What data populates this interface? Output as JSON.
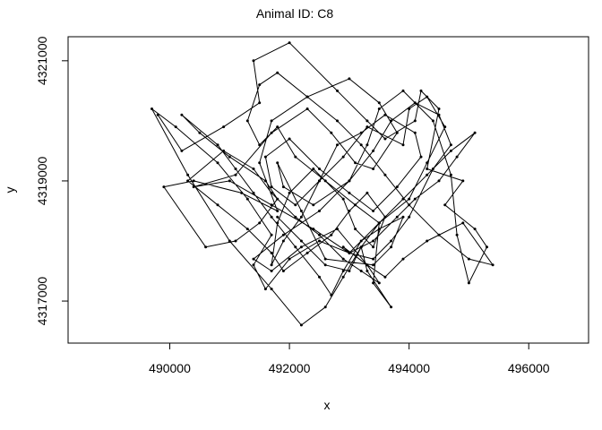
{
  "chart_data": {
    "type": "line",
    "title": "Animal ID: C8",
    "xlabel": "x",
    "ylabel": "y",
    "xlim": [
      488300,
      497000
    ],
    "ylim": [
      4316300,
      4321400
    ],
    "xticks": [
      490000,
      492000,
      494000,
      496000
    ],
    "xtick_labels": [
      "490000",
      "492000",
      "494000",
      "496000"
    ],
    "yticks": [
      4317000,
      4319000,
      4321000
    ],
    "ytick_labels": [
      "4317000",
      "4319000",
      "4321000"
    ],
    "grid": false,
    "legend": "none",
    "line_color": "#000000",
    "point_color": "#000000",
    "series": [
      {
        "x": [
          489800,
          490200,
          490900,
          491500,
          491400,
          492000,
          492800,
          493300,
          493600,
          494100,
          494200,
          494500,
          494300,
          494900,
          494600,
          495100,
          495300,
          495000,
          494800,
          494700,
          494400,
          493900,
          493500,
          493300,
          493000,
          492400,
          491900,
          491800,
          492200,
          492600,
          493400,
          493700,
          493900,
          493500,
          493200,
          492900,
          492700,
          492500,
          492100,
          491700,
          491400,
          491100,
          490800,
          490200,
          490500,
          491000,
          491600,
          491800,
          491500,
          491100,
          490600,
          489900,
          490400,
          491200,
          491800,
          491500,
          491700,
          492300,
          493000,
          493500,
          493800,
          493400,
          493100,
          492700,
          492300,
          491700,
          491100,
          490400,
          491000,
          491700,
          492400,
          493000,
          493400,
          493700,
          494000,
          494400,
          494700,
          494500,
          494100,
          493700,
          493400,
          493000,
          492500,
          491900,
          491400,
          491700,
          492200,
          492800,
          493300,
          493600,
          493900,
          494300,
          494900,
          495400,
          495000,
          494500,
          494000,
          493600,
          493200,
          492800,
          492300,
          491800,
          491500,
          491300,
          491500,
          491800,
          492100,
          492600,
          493100,
          493500,
          493400,
          493700,
          493300,
          493200,
          492900,
          492600,
          492200,
          491700,
          491000,
          490300,
          489700,
          490100,
          490800,
          491300,
          491700,
          491400,
          491600,
          492000,
          492500,
          493000,
          493500,
          494000,
          494300,
          494600,
          494300,
          494000,
          493900,
          493300,
          492900,
          492500,
          492100,
          491700,
          491600,
          492000,
          492500,
          493000,
          493400,
          493800,
          494200,
          494100,
          493600,
          493200,
          492800,
          492500,
          492200,
          491900,
          491700,
          491800,
          492000,
          492400,
          492900,
          493100,
          493400,
          493600,
          493300,
          493000,
          492700,
          492300,
          491900,
          491700,
          491300,
          490800,
          490300,
          490900,
          491400,
          491700,
          492100,
          492500,
          492900,
          493200,
          493500,
          493300,
          492900,
          493000,
          493400,
          493800,
          494100,
          494500,
          494800,
          495100,
          494700,
          494300,
          493900,
          493500,
          493200,
          493000,
          492600,
          492200,
          491800
        ],
        "y": [
          4320100,
          4319500,
          4319900,
          4320300,
          4321000,
          4321300,
          4320500,
          4320000,
          4319700,
          4320000,
          4320500,
          4320200,
          4319200,
          4319000,
          4318600,
          4318200,
          4317900,
          4317300,
          4318100,
          4319100,
          4320000,
          4320500,
          4320200,
          4319600,
          4319000,
          4318600,
          4318900,
          4319300,
          4318500,
          4317700,
          4317600,
          4317900,
          4318400,
          4318200,
          4318000,
          4317500,
          4317100,
          4317400,
          4317900,
          4318400,
          4318800,
          4319200,
          4319600,
          4320100,
          4319800,
          4319400,
          4319000,
          4318700,
          4318300,
          4318000,
          4317900,
          4318900,
          4319000,
          4318800,
          4318500,
          4319300,
          4320000,
          4320400,
          4320700,
          4320300,
          4319800,
          4319200,
          4319300,
          4319800,
          4320200,
          4319800,
          4319100,
          4318900,
          4319000,
          4318600,
          4318200,
          4317800,
          4317700,
          4318000,
          4318400,
          4319200,
          4319600,
          4320100,
          4320300,
          4320000,
          4319500,
          4319000,
          4318500,
          4318100,
          4317700,
          4317500,
          4317900,
          4318200,
          4317600,
          4317400,
          4317700,
          4318000,
          4318300,
          4317600,
          4317700,
          4318100,
          4318600,
          4319100,
          4319600,
          4320000,
          4320400,
          4320800,
          4320600,
          4320000,
          4319600,
          4319900,
          4319400,
          4319000,
          4318600,
          4318300,
          4317300,
          4316900,
          4317500,
          4317900,
          4317400,
          4316900,
          4316600,
          4317200,
          4318000,
          4319100,
          4320200,
          4319900,
          4319300,
          4318700,
          4318100,
          4317600,
          4317200,
          4317700,
          4318000,
          4317800,
          4318300,
          4318700,
          4319300,
          4319900,
          4320400,
          4320200,
          4319600,
          4319900,
          4319400,
          4319000,
          4318600,
          4318900,
          4319400,
          4319700,
          4319200,
          4318800,
          4318500,
          4318900,
          4319400,
          4319800,
          4320100,
          4319800,
          4319600,
          4319000,
          4318400,
          4318000,
          4317600,
          4318300,
          4318800,
          4319200,
          4318700,
          4318200,
          4317900,
          4318400,
          4318800,
          4318500,
          4318100,
          4317800,
          4317500,
          4317800,
          4318200,
          4318600,
          4319000,
          4319500,
          4319200,
          4318800,
          4318400,
          4318100,
          4317700,
          4317500,
          4317300,
          4317600,
          4317900,
          4317800,
          4318000,
          4318400,
          4318700,
          4319000,
          4319400,
          4319800,
          4319500,
          4319100,
          4318700,
          4318300,
          4317900,
          4317500,
          4317600,
          4318000,
          4318400
        ]
      }
    ]
  }
}
